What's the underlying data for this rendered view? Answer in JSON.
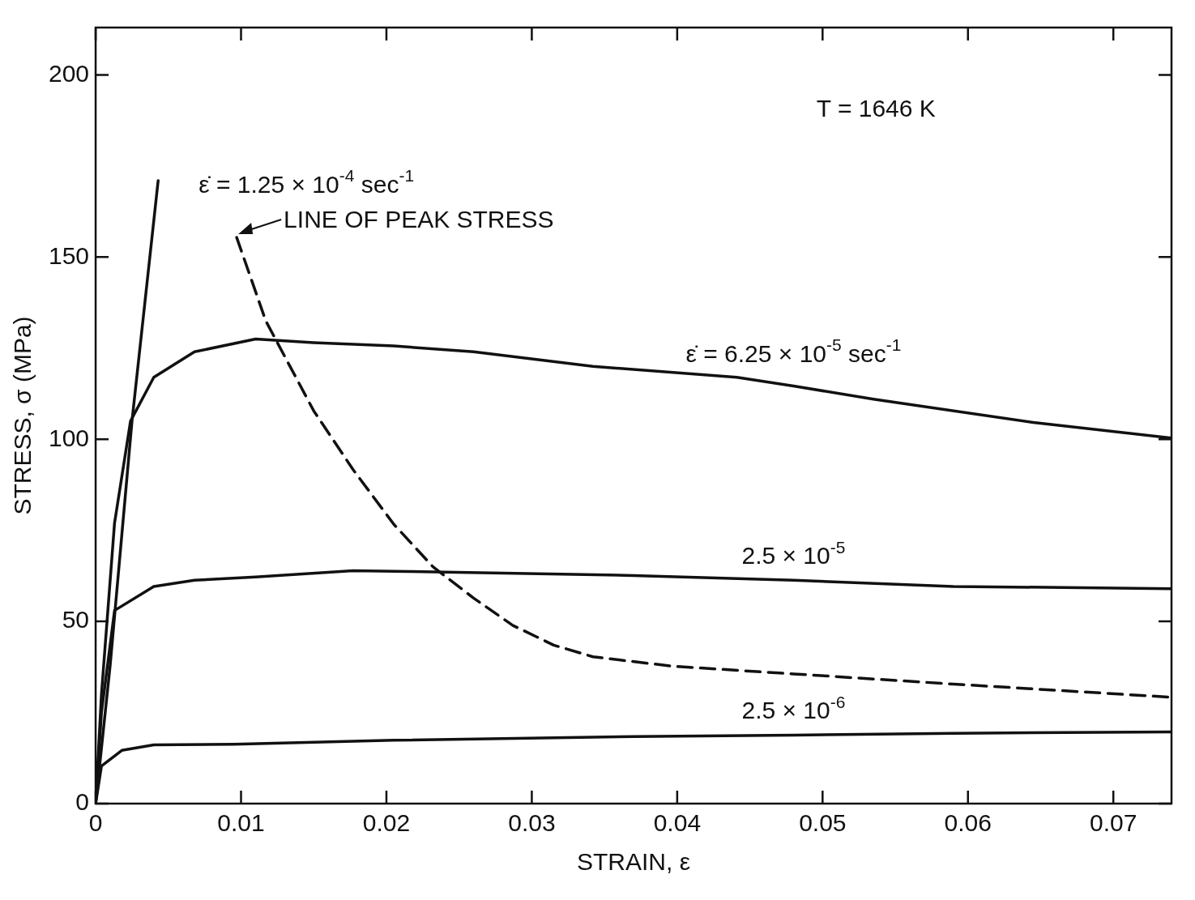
{
  "chart_data": {
    "type": "line",
    "xlabel": "STRAIN, ε",
    "ylabel": "STRESS, σ (MPa)",
    "xlim": [
      0,
      0.074
    ],
    "ylim": [
      0,
      213
    ],
    "xticks": [
      0,
      0.01,
      0.02,
      0.03,
      0.04,
      0.05,
      0.06,
      0.07
    ],
    "yticks": [
      0,
      50,
      100,
      150,
      200
    ],
    "grid": false,
    "legend": false,
    "series": [
      {
        "color": "#111111",
        "x": [
          0,
          0.001,
          0.0025,
          0.0043
        ],
        "values": [
          0,
          38,
          105,
          171
        ]
      },
      {
        "color": "#111111",
        "x": [
          0,
          0.0004,
          0.0013,
          0.0024,
          0.004,
          0.0068,
          0.011,
          0.015,
          0.0205,
          0.026,
          0.0342,
          0.0441,
          0.048,
          0.0535,
          0.0645,
          0.074
        ],
        "values": [
          0,
          30,
          77,
          105,
          117,
          124,
          127.5,
          126.5,
          125.6,
          124,
          120,
          117,
          114.6,
          111,
          104.6,
          100.3
        ]
      },
      {
        "color": "#111111",
        "x": [
          0,
          0.0004,
          0.0013,
          0.004,
          0.0068,
          0.011,
          0.0177,
          0.0216,
          0.037,
          0.048,
          0.059,
          0.074
        ],
        "values": [
          0,
          25,
          53,
          59.6,
          61.3,
          62.2,
          63.9,
          63.7,
          62.6,
          61.3,
          59.6,
          59
        ]
      },
      {
        "color": "#111111",
        "x": [
          0,
          0.0004,
          0.0018,
          0.004,
          0.0095,
          0.0205,
          0.037,
          0.048,
          0.059,
          0.074
        ],
        "values": [
          0,
          10.3,
          14.6,
          16.1,
          16.3,
          17.4,
          18.4,
          18.8,
          19.3,
          19.7
        ]
      },
      {
        "color": "#111111",
        "line_style": "dashed",
        "x": [
          0.0097,
          0.0117,
          0.015,
          0.0177,
          0.0205,
          0.0232,
          0.026,
          0.0287,
          0.0315,
          0.0342,
          0.0397,
          0.048,
          0.059,
          0.074
        ],
        "values": [
          155.4,
          132.5,
          107.8,
          91.7,
          76.7,
          65,
          56.4,
          48.9,
          43.5,
          40.3,
          37.7,
          35.6,
          32.8,
          29.2
        ]
      }
    ],
    "annotations": [
      "T = 1646 K",
      {
        "text": "ε̇ = 1.25 × 10$^{-4}$ sec$^{-1}$",
        "x": 0.0043,
        "y": 171
      },
      {
        "text": "LINE OF PEAK STRESS",
        "x": 0.0097,
        "y": 155.4
      },
      {
        "text": "ε̇ = 6.25 × 10$^{-5}$ sec$^{-1}$",
        "x": 0.048,
        "y": 114.6
      },
      {
        "text": "2.5 × 10$^{-5}$",
        "x": 0.048,
        "y": 61.3
      },
      {
        "text": "2.5 × 10$^{-6}$",
        "x": 0.048,
        "y": 18.8
      }
    ]
  }
}
